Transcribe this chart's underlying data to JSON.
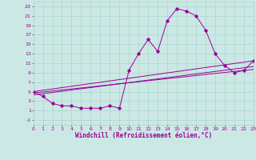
{
  "xlabel": "Windchill (Refroidissement éolien,°C)",
  "bg_color": "#cce8e4",
  "grid_color": "#aad4cc",
  "line_color": "#990099",
  "xlim": [
    0,
    23
  ],
  "ylim": [
    -2,
    24
  ],
  "xticks": [
    0,
    1,
    2,
    3,
    4,
    5,
    6,
    7,
    8,
    9,
    10,
    11,
    12,
    13,
    14,
    15,
    16,
    17,
    18,
    19,
    20,
    21,
    22,
    23
  ],
  "yticks": [
    -1,
    1,
    3,
    5,
    7,
    9,
    11,
    13,
    15,
    17,
    19,
    21,
    23
  ],
  "main_line_x": [
    0,
    1,
    2,
    3,
    4,
    5,
    6,
    7,
    8,
    9,
    10,
    11,
    12,
    13,
    14,
    15,
    16,
    17,
    18,
    19,
    20,
    21,
    22,
    23
  ],
  "main_line_y": [
    5,
    4,
    2.5,
    2,
    2,
    1.5,
    1.5,
    1.5,
    2,
    1.5,
    9.5,
    13,
    16,
    13.5,
    20,
    22.5,
    22,
    21,
    18,
    13,
    10.5,
    9,
    9.5,
    11.5
  ],
  "line2_x": [
    0,
    23
  ],
  "line2_y": [
    5.0,
    11.5
  ],
  "line3_x": [
    0,
    23
  ],
  "line3_y": [
    4.3,
    10.3
  ],
  "line4_x": [
    0,
    23
  ],
  "line4_y": [
    4.7,
    9.7
  ]
}
